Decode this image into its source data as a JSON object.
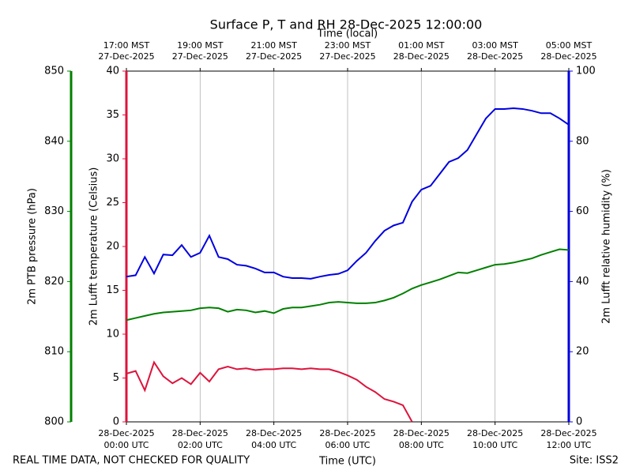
{
  "chart_data": {
    "type": "line",
    "title": "Surface P, T and RH 28-Dec-2025 12:00:00",
    "xlabel": "Time (UTC)",
    "x2label": "Time (local)",
    "footer_left": "REAL TIME DATA, NOT CHECKED FOR QUALITY",
    "footer_right": "Site: ISS2",
    "grid": "x",
    "xlim": [
      0,
      12
    ],
    "xticks": [
      {
        "value": 0,
        "label": "28-Dec-2025\n00:00 UTC"
      },
      {
        "value": 2,
        "label": "28-Dec-2025\n02:00 UTC"
      },
      {
        "value": 4,
        "label": "28-Dec-2025\n04:00 UTC"
      },
      {
        "value": 6,
        "label": "28-Dec-2025\n06:00 UTC"
      },
      {
        "value": 8,
        "label": "28-Dec-2025\n08:00 UTC"
      },
      {
        "value": 10,
        "label": "28-Dec-2025\n10:00 UTC"
      },
      {
        "value": 12,
        "label": "28-Dec-2025\n12:00 UTC"
      }
    ],
    "x2ticks": [
      {
        "value": 0,
        "label": "17:00 MST\n27-Dec-2025"
      },
      {
        "value": 2,
        "label": "19:00 MST\n27-Dec-2025"
      },
      {
        "value": 4,
        "label": "21:00 MST\n27-Dec-2025"
      },
      {
        "value": 6,
        "label": "23:00 MST\n27-Dec-2025"
      },
      {
        "value": 8,
        "label": "01:00 MST\n28-Dec-2025"
      },
      {
        "value": 10,
        "label": "03:00 MST\n28-Dec-2025"
      },
      {
        "value": 12,
        "label": "05:00 MST\n28-Dec-2025"
      }
    ],
    "ylabel": "2m Lufft temperature (Celsius)",
    "ylim": [
      0,
      40
    ],
    "yticks": [
      0,
      5,
      10,
      15,
      20,
      25,
      30,
      35,
      40
    ],
    "y2label": "2m Lufft relative humidity (%)",
    "y2lim": [
      0,
      100
    ],
    "y2ticks": [
      0,
      20,
      40,
      60,
      80,
      100
    ],
    "y3label": "2m PTB pressure (hPa)",
    "y3lim": [
      800,
      850
    ],
    "y3ticks": [
      800,
      810,
      820,
      830,
      840,
      850
    ],
    "x": [
      0,
      0.25,
      0.5,
      0.75,
      1,
      1.25,
      1.5,
      1.75,
      2,
      2.25,
      2.5,
      2.75,
      3,
      3.25,
      3.5,
      3.75,
      4,
      4.25,
      4.5,
      4.75,
      5,
      5.25,
      5.5,
      5.75,
      6,
      6.25,
      6.5,
      6.75,
      7,
      7.25,
      7.5,
      7.75,
      8,
      8.25,
      8.5,
      8.75,
      9,
      9.25,
      9.5,
      9.75,
      10,
      10.25,
      10.5,
      10.75,
      11,
      11.25,
      11.5,
      11.75,
      12
    ],
    "series": [
      {
        "axis": "y3",
        "color": "#008000",
        "values": [
          814.5,
          814.8,
          815.1,
          815.4,
          815.6,
          815.7,
          815.8,
          815.9,
          816.2,
          816.3,
          816.2,
          815.7,
          816.0,
          815.9,
          815.6,
          815.8,
          815.5,
          816.1,
          816.3,
          816.3,
          816.5,
          816.7,
          817.0,
          817.1,
          817.0,
          816.9,
          816.9,
          817.0,
          817.3,
          817.7,
          818.3,
          819.0,
          819.5,
          819.9,
          820.3,
          820.8,
          821.3,
          821.2,
          821.6,
          822.0,
          822.4,
          822.5,
          822.7,
          823.0,
          823.3,
          823.8,
          824.2,
          824.6,
          824.5
        ]
      },
      {
        "axis": "y",
        "color": "#dc143c",
        "values": [
          5.5,
          5.8,
          3.6,
          6.8,
          5.2,
          4.4,
          5.0,
          4.3,
          5.6,
          4.6,
          6.0,
          6.3,
          6.0,
          6.1,
          5.9,
          6.0,
          6.0,
          6.1,
          6.1,
          6.0,
          6.1,
          6.0,
          6.0,
          5.7,
          5.3,
          4.8,
          4.0,
          3.4,
          2.6,
          2.3,
          1.9,
          0,
          null,
          null,
          null,
          null,
          null,
          null,
          null,
          null,
          null,
          null,
          null,
          null,
          null,
          null,
          null,
          null,
          null
        ]
      },
      {
        "axis": "y2",
        "color": "#0000e0",
        "values": [
          41.4,
          41.8,
          47,
          42.3,
          47.7,
          47.5,
          50.4,
          47,
          48.2,
          53.1,
          47,
          46.4,
          44.8,
          44.5,
          43.7,
          42.6,
          42.6,
          41.4,
          41,
          41,
          40.8,
          41.4,
          41.9,
          42.2,
          43.2,
          45.9,
          48.2,
          51.6,
          54.5,
          56,
          56.8,
          62.8,
          66.2,
          67.3,
          70.7,
          74.1,
          75.2,
          77.5,
          82,
          86.5,
          89.2,
          89.2,
          89.4,
          89.2,
          88.7,
          88,
          88,
          86.5,
          84.7
        ]
      }
    ]
  }
}
